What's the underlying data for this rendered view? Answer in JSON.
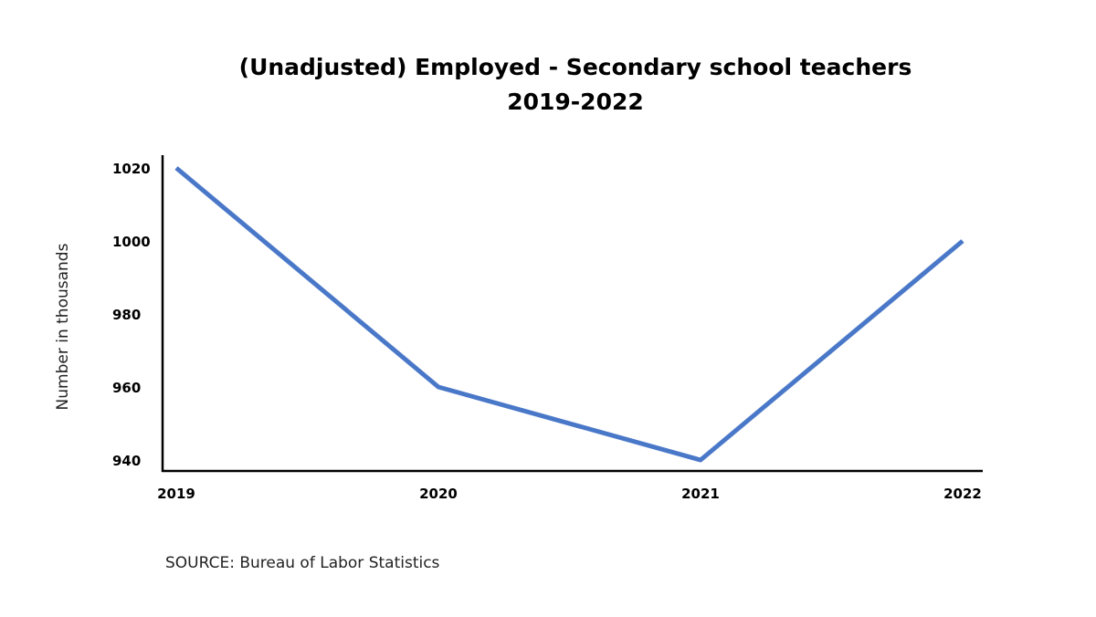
{
  "chart_data": {
    "type": "line",
    "title": "(Unadjusted) Employed - Secondary school teachers",
    "subtitle": "2019-2022",
    "xlabel": "",
    "ylabel": "Number in thousands",
    "categories": [
      "2019",
      "2020",
      "2021",
      "2022"
    ],
    "series": [
      {
        "values": [
          1020,
          960,
          940,
          1000
        ],
        "color": "#4a78c8"
      }
    ],
    "yticks": [
      940,
      960,
      980,
      1000,
      1020
    ],
    "ylim": [
      940,
      1020
    ],
    "grid": false,
    "legend": "none"
  },
  "source": "SOURCE: Bureau of Labor Statistics"
}
